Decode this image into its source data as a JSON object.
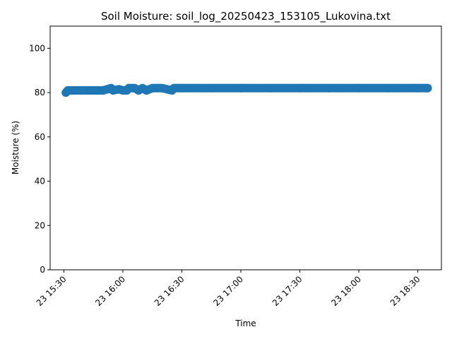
{
  "chart_data": {
    "type": "scatter",
    "title": "Soil Moisture: soil_log_20250423_153105_Lukovina.txt",
    "xlabel": "Time",
    "ylabel": "Moisture (%)",
    "xlim": [
      "2025-04-23 15:23",
      "2025-04-23 18:42"
    ],
    "ylim": [
      0,
      110
    ],
    "x_ticks": [
      {
        "value": "2025-04-23 15:30",
        "label": "23 15:30"
      },
      {
        "value": "2025-04-23 16:00",
        "label": "23 16:00"
      },
      {
        "value": "2025-04-23 16:30",
        "label": "23 16:30"
      },
      {
        "value": "2025-04-23 17:00",
        "label": "23 17:00"
      },
      {
        "value": "2025-04-23 17:30",
        "label": "23 17:30"
      },
      {
        "value": "2025-04-23 18:00",
        "label": "23 18:00"
      },
      {
        "value": "2025-04-23 18:30",
        "label": "23 18:30"
      }
    ],
    "y_ticks": [
      0,
      20,
      40,
      60,
      80,
      100
    ],
    "grid": false,
    "color": "#1f77b4",
    "series": [
      {
        "points": [
          [
            "2025-04-23 15:31",
            80
          ],
          [
            "2025-04-23 15:32",
            81
          ],
          [
            "2025-04-23 15:36",
            81
          ],
          [
            "2025-04-23 15:40",
            81
          ],
          [
            "2025-04-23 15:45",
            81
          ],
          [
            "2025-04-23 15:50",
            81
          ],
          [
            "2025-04-23 15:54",
            82
          ],
          [
            "2025-04-23 15:55",
            81
          ],
          [
            "2025-04-23 15:58",
            81.5
          ],
          [
            "2025-04-23 16:00",
            81
          ],
          [
            "2025-04-23 16:02",
            81
          ],
          [
            "2025-04-23 16:03",
            82
          ],
          [
            "2025-04-23 16:06",
            82
          ],
          [
            "2025-04-23 16:08",
            81
          ],
          [
            "2025-04-23 16:10",
            82
          ],
          [
            "2025-04-23 16:12",
            81
          ],
          [
            "2025-04-23 16:15",
            82
          ],
          [
            "2025-04-23 16:20",
            82
          ],
          [
            "2025-04-23 16:25",
            81
          ],
          [
            "2025-04-23 16:26",
            82
          ],
          [
            "2025-04-23 16:30",
            82
          ],
          [
            "2025-04-23 16:45",
            82
          ],
          [
            "2025-04-23 17:00",
            82
          ],
          [
            "2025-04-23 17:15",
            82
          ],
          [
            "2025-04-23 17:30",
            82
          ],
          [
            "2025-04-23 17:45",
            82
          ],
          [
            "2025-04-23 18:00",
            82
          ],
          [
            "2025-04-23 18:15",
            82
          ],
          [
            "2025-04-23 18:30",
            82
          ],
          [
            "2025-04-23 18:35",
            82
          ]
        ]
      }
    ]
  }
}
